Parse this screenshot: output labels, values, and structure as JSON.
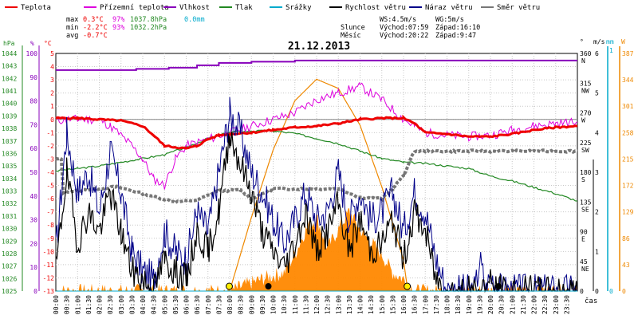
{
  "chart_data": {
    "type": "line",
    "title": "21.12.2013",
    "legend": [
      {
        "label": "Teplota",
        "color": "#ee0000"
      },
      {
        "label": "Přízemní teplota",
        "color": "#dd00dd"
      },
      {
        "label": "Vlhkost",
        "color": "#8800bb"
      },
      {
        "label": "Tlak",
        "color": "#228822"
      },
      {
        "label": "Srážky",
        "color": "#00aacc"
      },
      {
        "label": "Rychlost větru",
        "color": "#000000"
      },
      {
        "label": "Náraz větru",
        "color": "#000088"
      },
      {
        "label": "Směr větru",
        "color": "#777777"
      }
    ],
    "stats": {
      "rows": [
        {
          "label": "max",
          "temp": "0.3°C",
          "hum": "97%",
          "press": "1037.8hPa",
          "rain": "0.0mm"
        },
        {
          "label": "min",
          "temp": "-2.2°C",
          "hum": "93%",
          "press": "1032.2hPa",
          "rain": ""
        },
        {
          "label": "avg",
          "temp": "-0.7°C",
          "hum": "",
          "press": "",
          "rain": ""
        }
      ],
      "wind": {
        "ws": "WS:4.5m/s",
        "wg": "WG:5m/s"
      },
      "sun": {
        "label": "Slunce",
        "rise": "Východ:07:59",
        "set": "Západ:16:10"
      },
      "moon": {
        "label": "Měsíc",
        "rise": "Východ:20:22",
        "set": "Západ:9:47"
      }
    },
    "axes": {
      "hpa": {
        "title": "hPa",
        "ticks": [
          "1044",
          "1043",
          "1042",
          "1041",
          "1040",
          "1039",
          "1038",
          "1037",
          "1036",
          "1035",
          "1034",
          "1033",
          "1032",
          "1031",
          "1030",
          "1029",
          "1028",
          "1027",
          "1026",
          "1025"
        ]
      },
      "percent": {
        "title": "%",
        "ticks": [
          "100",
          "90",
          "80",
          "70",
          "60",
          "50",
          "40",
          "30",
          "20",
          "10",
          "0"
        ]
      },
      "celsius": {
        "title": "°C",
        "ticks": [
          "5",
          "4",
          "3",
          "2",
          "1",
          "0",
          "-1",
          "-2",
          "-3",
          "-4",
          "-5",
          "-6",
          "-7",
          "-8",
          "-9",
          "-10",
          "-11",
          "-12",
          "-13"
        ]
      },
      "direction": {
        "title": "°",
        "ticks": [
          {
            "deg": "360",
            "dir": "N"
          },
          {
            "deg": "315",
            "dir": "NW"
          },
          {
            "deg": "270",
            "dir": "W"
          },
          {
            "deg": "225",
            "dir": "SW"
          },
          {
            "deg": "180",
            "dir": "S"
          },
          {
            "deg": "135",
            "dir": "SE"
          },
          {
            "deg": "90",
            "dir": "E"
          },
          {
            "deg": "45",
            "dir": "NE"
          },
          {
            "deg": "0",
            "dir": ""
          }
        ]
      },
      "ms": {
        "title": "m/s",
        "ticks": [
          "6",
          "5",
          "4",
          "3",
          "2",
          "1",
          "0"
        ]
      },
      "mm": {
        "title": "mm",
        "ticks": [
          "1",
          "0"
        ]
      },
      "solar": {
        "title": "W",
        "ticks": [
          "387",
          "344",
          "301",
          "258",
          "215",
          "172",
          "129",
          "86",
          "43",
          "0"
        ]
      },
      "time": {
        "title": "čas",
        "ticks": [
          "00:00",
          "00:30",
          "01:00",
          "01:30",
          "02:00",
          "02:30",
          "03:00",
          "03:30",
          "04:00",
          "04:30",
          "05:00",
          "05:30",
          "06:00",
          "06:30",
          "07:00",
          "07:30",
          "08:00",
          "08:30",
          "09:00",
          "09:30",
          "10:00",
          "10:30",
          "11:00",
          "11:30",
          "12:00",
          "12:30",
          "13:00",
          "13:30",
          "14:00",
          "14:30",
          "15:00",
          "15:30",
          "16:00",
          "16:30",
          "17:00",
          "17:30",
          "18:00",
          "18:30",
          "19:00",
          "19:30",
          "20:00",
          "20:30",
          "21:00",
          "21:30",
          "22:00",
          "22:30",
          "23:00",
          "23:30"
        ]
      }
    },
    "series": {
      "temperature_c": [
        [
          0,
          0.1
        ],
        [
          1,
          0.1
        ],
        [
          2,
          0
        ],
        [
          3,
          -0.1
        ],
        [
          4,
          -0.5
        ],
        [
          4.5,
          -1.2
        ],
        [
          5,
          -2.0
        ],
        [
          5.5,
          -2.1
        ],
        [
          6,
          -2.2
        ],
        [
          6.5,
          -2.0
        ],
        [
          7,
          -1.5
        ],
        [
          7.5,
          -1.2
        ],
        [
          8,
          -1.1
        ],
        [
          9,
          -1.0
        ],
        [
          10,
          -0.8
        ],
        [
          11,
          -0.6
        ],
        [
          12,
          -0.5
        ],
        [
          13,
          -0.3
        ],
        [
          14,
          0
        ],
        [
          15,
          0.1
        ],
        [
          16,
          0.1
        ],
        [
          16.5,
          -0.3
        ],
        [
          17,
          -1.0
        ],
        [
          18,
          -1.1
        ],
        [
          19,
          -1.3
        ],
        [
          20,
          -1.3
        ],
        [
          21,
          -1.1
        ],
        [
          22,
          -0.8
        ],
        [
          23,
          -0.6
        ],
        [
          24,
          -0.5
        ]
      ],
      "ground_temperature_c": [
        [
          0,
          -0.1
        ],
        [
          0.5,
          0
        ],
        [
          1,
          0
        ],
        [
          2,
          0
        ],
        [
          2.5,
          -0.5
        ],
        [
          3,
          -1.2
        ],
        [
          3.5,
          -2.0
        ],
        [
          4,
          -3.0
        ],
        [
          4.5,
          -4.5
        ],
        [
          5,
          -5.0
        ],
        [
          5.5,
          -3.0
        ],
        [
          6,
          -2.0
        ],
        [
          7,
          -1.5
        ],
        [
          8,
          -1.0
        ],
        [
          9,
          -0.5
        ],
        [
          10,
          0
        ],
        [
          11,
          0.5
        ],
        [
          12,
          1.5
        ],
        [
          13,
          2.0
        ],
        [
          14,
          2.5
        ],
        [
          15,
          1.5
        ],
        [
          16,
          0
        ],
        [
          16.5,
          -0.5
        ],
        [
          17,
          -1.0
        ],
        [
          18,
          -1.2
        ],
        [
          19,
          -1.3
        ],
        [
          20,
          -1.2
        ],
        [
          21,
          -0.8
        ],
        [
          22,
          -0.5
        ],
        [
          23,
          -0.3
        ],
        [
          24,
          -0.2
        ]
      ],
      "humidity_pct": [
        [
          0,
          93
        ],
        [
          3,
          93
        ],
        [
          3.7,
          93.5
        ],
        [
          5.2,
          94
        ],
        [
          6.5,
          95
        ],
        [
          7.5,
          96
        ],
        [
          9,
          96.5
        ],
        [
          11,
          97
        ],
        [
          24,
          97
        ]
      ],
      "pressure_hpa": [
        [
          0,
          1034.6
        ],
        [
          1,
          1034.8
        ],
        [
          2,
          1035.0
        ],
        [
          3,
          1035.3
        ],
        [
          4,
          1035.6
        ],
        [
          5,
          1035.9
        ],
        [
          6,
          1036.5
        ],
        [
          7,
          1037.2
        ],
        [
          8,
          1037.7
        ],
        [
          9,
          1037.8
        ],
        [
          10,
          1037.8
        ],
        [
          11,
          1037.6
        ],
        [
          12,
          1037.2
        ],
        [
          13,
          1036.8
        ],
        [
          14,
          1036.2
        ],
        [
          15,
          1035.6
        ],
        [
          16,
          1035.3
        ],
        [
          17,
          1035.2
        ],
        [
          18,
          1035.0
        ],
        [
          19,
          1034.8
        ],
        [
          20,
          1034.2
        ],
        [
          21,
          1033.8
        ],
        [
          22,
          1033.3
        ],
        [
          23,
          1032.8
        ],
        [
          24,
          1032.2
        ]
      ],
      "precipitation_mm": [
        [
          0,
          0
        ],
        [
          24,
          0
        ]
      ],
      "wind_speed_ms": [
        [
          0,
          0.5
        ],
        [
          0.5,
          3.0
        ],
        [
          1,
          1.2
        ],
        [
          1.5,
          2.0
        ],
        [
          2,
          1.5
        ],
        [
          2.5,
          2.5
        ],
        [
          3,
          1.5
        ],
        [
          3.5,
          0.5
        ],
        [
          4,
          0.3
        ],
        [
          4.5,
          0
        ],
        [
          5,
          0.8
        ],
        [
          5.5,
          0.5
        ],
        [
          6,
          0.3
        ],
        [
          6.5,
          1.5
        ],
        [
          7,
          1.0
        ],
        [
          7.5,
          2.0
        ],
        [
          8,
          4.0
        ],
        [
          8.5,
          3.2
        ],
        [
          9,
          2.5
        ],
        [
          9.5,
          1.5
        ],
        [
          10,
          1.0
        ],
        [
          10.5,
          0.6
        ],
        [
          11,
          1.2
        ],
        [
          11.5,
          2.0
        ],
        [
          12,
          1.0
        ],
        [
          12.5,
          1.5
        ],
        [
          13,
          2.2
        ],
        [
          13.5,
          1.0
        ],
        [
          14,
          1.8
        ],
        [
          14.5,
          1.0
        ],
        [
          15,
          1.2
        ],
        [
          15.5,
          1.8
        ],
        [
          16,
          0.8
        ],
        [
          16.5,
          2.0
        ],
        [
          17,
          1.5
        ],
        [
          17.5,
          0.3
        ],
        [
          18,
          0
        ],
        [
          19.5,
          0
        ],
        [
          20,
          0.2
        ],
        [
          20.5,
          0
        ],
        [
          24,
          0
        ]
      ],
      "wind_gust_ms": [
        [
          0,
          1.0
        ],
        [
          0.5,
          4.0
        ],
        [
          1,
          2.5
        ],
        [
          1.5,
          3.0
        ],
        [
          2,
          2.0
        ],
        [
          2.5,
          3.5
        ],
        [
          3,
          2.5
        ],
        [
          3.5,
          1.0
        ],
        [
          4,
          0.5
        ],
        [
          4.5,
          0.3
        ],
        [
          5,
          1.5
        ],
        [
          5.5,
          1.0
        ],
        [
          6,
          0.8
        ],
        [
          6.5,
          2.0
        ],
        [
          7,
          1.5
        ],
        [
          7.5,
          3.0
        ],
        [
          8,
          4.5
        ],
        [
          8.5,
          4.0
        ],
        [
          9,
          3.0
        ],
        [
          9.5,
          2.5
        ],
        [
          10,
          1.8
        ],
        [
          10.5,
          1.2
        ],
        [
          11,
          1.8
        ],
        [
          11.5,
          2.5
        ],
        [
          12,
          1.8
        ],
        [
          12.5,
          2.0
        ],
        [
          13,
          3.0
        ],
        [
          13.5,
          1.8
        ],
        [
          14,
          2.5
        ],
        [
          14.5,
          1.8
        ],
        [
          15,
          2.0
        ],
        [
          15.5,
          2.5
        ],
        [
          16,
          1.5
        ],
        [
          16.5,
          2.5
        ],
        [
          17,
          2.0
        ],
        [
          17.5,
          0.8
        ],
        [
          18,
          0
        ],
        [
          19.3,
          0
        ],
        [
          19.5,
          0.8
        ],
        [
          19.8,
          0
        ],
        [
          20,
          0.4
        ],
        [
          20.5,
          0
        ],
        [
          24,
          0
        ]
      ],
      "wind_direction_deg": [
        [
          0,
          200
        ],
        [
          0.25,
          200
        ],
        [
          0.35,
          150
        ],
        [
          2.8,
          158
        ],
        [
          5.5,
          135
        ],
        [
          6.5,
          138
        ],
        [
          7.5,
          152
        ],
        [
          8.5,
          153
        ],
        [
          9,
          140
        ],
        [
          10,
          155
        ],
        [
          13,
          155
        ],
        [
          14,
          142
        ],
        [
          15,
          140
        ],
        [
          15.5,
          155
        ],
        [
          16,
          175
        ],
        [
          16.5,
          212
        ],
        [
          24,
          212
        ]
      ],
      "solar_w": [
        [
          0,
          0
        ],
        [
          8,
          0
        ],
        [
          9.5,
          20
        ],
        [
          10.5,
          30
        ],
        [
          11,
          60
        ],
        [
          11.5,
          100
        ],
        [
          12,
          120
        ],
        [
          12.5,
          70
        ],
        [
          13,
          100
        ],
        [
          13.5,
          130
        ],
        [
          14,
          100
        ],
        [
          14.5,
          80
        ],
        [
          15,
          60
        ],
        [
          15.5,
          30
        ],
        [
          16,
          20
        ],
        [
          16.5,
          0
        ],
        [
          24,
          0
        ]
      ],
      "solar_theoretical_w": [
        [
          8,
          0
        ],
        [
          9,
          120
        ],
        [
          10,
          230
        ],
        [
          11,
          310
        ],
        [
          12,
          345
        ],
        [
          13,
          330
        ],
        [
          14,
          270
        ],
        [
          15,
          170
        ],
        [
          16,
          50
        ],
        [
          16.2,
          0
        ]
      ]
    },
    "markers": [
      {
        "name": "sunrise",
        "x": 7.98,
        "kind": "sun"
      },
      {
        "name": "moonset",
        "x": 9.78,
        "kind": "moon"
      },
      {
        "name": "sunset",
        "x": 16.17,
        "kind": "sun"
      },
      {
        "name": "moonrise",
        "x": 20.37,
        "kind": "moon"
      }
    ],
    "xlim": [
      0,
      24
    ],
    "ylim_temperature": [
      -13,
      5
    ],
    "ylim_humidity": [
      0,
      100
    ],
    "ylim_pressure": [
      1025,
      1044
    ],
    "ylim_wind": [
      0,
      6
    ],
    "ylim_direction": [
      0,
      360
    ],
    "ylim_solar": [
      0,
      387
    ],
    "grid": true
  }
}
